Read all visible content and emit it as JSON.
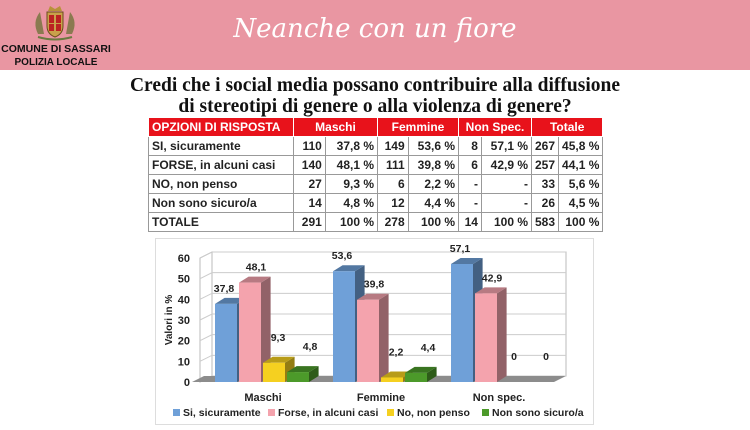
{
  "header": {
    "org_line1": "COMUNE DI SASSARI",
    "org_line2": "POLIZIA LOCALE",
    "brand": "Neanche con un fiore"
  },
  "question": {
    "line1": "Credi che i social media possano contribuire alla diffusione",
    "line2": "di stereotipi di genere o alla violenza di genere?"
  },
  "table": {
    "headers": [
      "OPZIONI DI RISPOSTA",
      "Maschi",
      "Femmine",
      "Non Spec.",
      "Totale"
    ],
    "rows": [
      [
        "SI, sicuramente",
        "110",
        "37,8 %",
        "149",
        "53,6 %",
        "8",
        "57,1 %",
        "267",
        "45,8 %"
      ],
      [
        "FORSE, in alcuni casi",
        "140",
        "48,1 %",
        "111",
        "39,8 %",
        "6",
        "42,9 %",
        "257",
        "44,1 %"
      ],
      [
        "NO, non penso",
        "27",
        "9,3 %",
        "6",
        "2,2 %",
        "-",
        "-",
        "33",
        "5,6 %"
      ],
      [
        "Non sono sicuro/a",
        "14",
        "4,8 %",
        "12",
        "4,4 %",
        "-",
        "-",
        "26",
        "4,5 %"
      ],
      [
        "TOTALE",
        "291",
        "100 %",
        "278",
        "100 %",
        "14",
        "100 %",
        "583",
        "100 %"
      ]
    ]
  },
  "chart_data": {
    "type": "bar",
    "ylabel": "Valori in %",
    "ylim": [
      0,
      60
    ],
    "yticks": [
      0,
      10,
      20,
      30,
      40,
      50,
      60
    ],
    "categories": [
      "Maschi",
      "Femmine",
      "Non spec."
    ],
    "legend_position": "bottom",
    "series": [
      {
        "name": "Si, sicuramente",
        "values": [
          37.8,
          53.6,
          57.1
        ],
        "labels": [
          "37,8",
          "53,6",
          "57,1"
        ],
        "color": "#6fa0d8"
      },
      {
        "name": "Forse, in alcuni casi",
        "values": [
          48.1,
          39.8,
          42.9
        ],
        "labels": [
          "48,1",
          "39,8",
          "42,9"
        ],
        "color": "#f4a3ad"
      },
      {
        "name": "No, non penso",
        "values": [
          9.3,
          2.2,
          0
        ],
        "labels": [
          "9,3",
          "2,2",
          "0"
        ],
        "color": "#f5d020"
      },
      {
        "name": "Non sono sicuro/a",
        "values": [
          4.8,
          4.4,
          0
        ],
        "labels": [
          "4,8",
          "4,4",
          "0"
        ],
        "color": "#4c9a2a"
      }
    ]
  }
}
